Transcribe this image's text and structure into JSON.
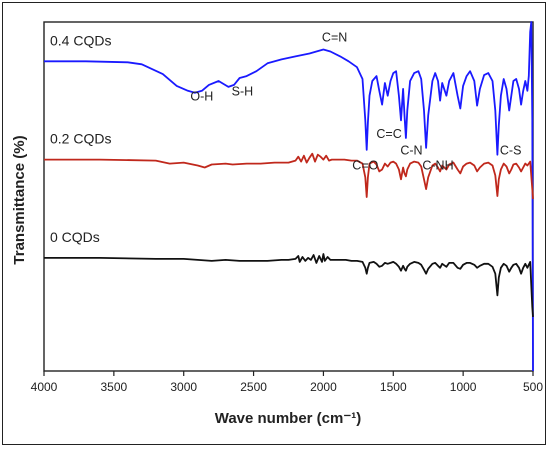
{
  "chart_data": {
    "type": "line",
    "xlabel": "Wave number (cm⁻¹)",
    "ylabel": "Transmittance (%)",
    "x_ticks": [
      "4000",
      "3500",
      "3000",
      "2500",
      "2000",
      "1500",
      "1000",
      "500"
    ],
    "xlim": [
      4000,
      500
    ],
    "x_reversed": true,
    "legend": "inline labels above each trace",
    "series": [
      {
        "name": "0.4 CQDs",
        "color": "#1a1aff",
        "offset": 2.0,
        "points": [
          [
            4000,
            0.9
          ],
          [
            3700,
            0.9
          ],
          [
            3400,
            0.89
          ],
          [
            3300,
            0.87
          ],
          [
            3150,
            0.77
          ],
          [
            3050,
            0.65
          ],
          [
            2970,
            0.6
          ],
          [
            2920,
            0.58
          ],
          [
            2870,
            0.6
          ],
          [
            2820,
            0.66
          ],
          [
            2750,
            0.7
          ],
          [
            2680,
            0.64
          ],
          [
            2640,
            0.66
          ],
          [
            2600,
            0.73
          ],
          [
            2550,
            0.75
          ],
          [
            2480,
            0.8
          ],
          [
            2400,
            0.88
          ],
          [
            2300,
            0.92
          ],
          [
            2200,
            0.95
          ],
          [
            2100,
            0.98
          ],
          [
            2050,
            1.0
          ],
          [
            2000,
            1.02
          ],
          [
            1950,
            1.0
          ],
          [
            1880,
            0.95
          ],
          [
            1820,
            0.9
          ],
          [
            1760,
            0.84
          ],
          [
            1720,
            0.72
          ],
          [
            1700,
            0.3
          ],
          [
            1690,
            0.0
          ],
          [
            1682,
            0.28
          ],
          [
            1670,
            0.55
          ],
          [
            1650,
            0.7
          ],
          [
            1620,
            0.75
          ],
          [
            1600,
            0.6
          ],
          [
            1580,
            0.46
          ],
          [
            1560,
            0.68
          ],
          [
            1540,
            0.55
          ],
          [
            1520,
            0.7
          ],
          [
            1500,
            0.78
          ],
          [
            1480,
            0.8
          ],
          [
            1460,
            0.55
          ],
          [
            1445,
            0.3
          ],
          [
            1430,
            0.62
          ],
          [
            1420,
            0.35
          ],
          [
            1410,
            0.12
          ],
          [
            1400,
            0.4
          ],
          [
            1380,
            0.7
          ],
          [
            1350,
            0.78
          ],
          [
            1320,
            0.8
          ],
          [
            1300,
            0.72
          ],
          [
            1280,
            0.4
          ],
          [
            1265,
            0.02
          ],
          [
            1250,
            0.35
          ],
          [
            1220,
            0.7
          ],
          [
            1200,
            0.78
          ],
          [
            1180,
            0.7
          ],
          [
            1165,
            0.5
          ],
          [
            1150,
            0.68
          ],
          [
            1120,
            0.55
          ],
          [
            1100,
            0.7
          ],
          [
            1070,
            0.78
          ],
          [
            1040,
            0.55
          ],
          [
            1020,
            0.42
          ],
          [
            1000,
            0.65
          ],
          [
            975,
            0.75
          ],
          [
            950,
            0.8
          ],
          [
            920,
            0.7
          ],
          [
            900,
            0.45
          ],
          [
            880,
            0.62
          ],
          [
            850,
            0.76
          ],
          [
            820,
            0.78
          ],
          [
            790,
            0.7
          ],
          [
            770,
            0.4
          ],
          [
            755,
            -0.05
          ],
          [
            745,
            0.25
          ],
          [
            730,
            0.55
          ],
          [
            710,
            0.72
          ],
          [
            690,
            0.62
          ],
          [
            670,
            0.4
          ],
          [
            655,
            0.55
          ],
          [
            640,
            0.7
          ],
          [
            620,
            0.72
          ],
          [
            600,
            0.62
          ],
          [
            585,
            0.46
          ],
          [
            570,
            0.6
          ],
          [
            555,
            0.7
          ],
          [
            540,
            0.6
          ],
          [
            530,
            0.75
          ],
          [
            520,
            1.2
          ],
          [
            512,
            1.4
          ],
          [
            505,
            0.3
          ],
          [
            500,
            -4.0
          ]
        ]
      },
      {
        "name": "0.2 CQDs",
        "color": "#c0281c",
        "offset": 1.0,
        "points": [
          [
            4000,
            0.9
          ],
          [
            3600,
            0.9
          ],
          [
            3200,
            0.89
          ],
          [
            3100,
            0.86
          ],
          [
            3000,
            0.87
          ],
          [
            2900,
            0.84
          ],
          [
            2850,
            0.82
          ],
          [
            2800,
            0.85
          ],
          [
            2700,
            0.86
          ],
          [
            2650,
            0.85
          ],
          [
            2550,
            0.86
          ],
          [
            2450,
            0.86
          ],
          [
            2350,
            0.87
          ],
          [
            2300,
            0.87
          ],
          [
            2250,
            0.87
          ],
          [
            2200,
            0.89
          ],
          [
            2180,
            0.93
          ],
          [
            2160,
            0.88
          ],
          [
            2140,
            0.94
          ],
          [
            2120,
            0.87
          ],
          [
            2100,
            0.92
          ],
          [
            2080,
            0.96
          ],
          [
            2060,
            0.88
          ],
          [
            2040,
            0.95
          ],
          [
            2020,
            0.93
          ],
          [
            2000,
            0.9
          ],
          [
            1980,
            0.94
          ],
          [
            1960,
            0.89
          ],
          [
            1940,
            0.9
          ],
          [
            1900,
            0.9
          ],
          [
            1850,
            0.9
          ],
          [
            1800,
            0.89
          ],
          [
            1760,
            0.89
          ],
          [
            1720,
            0.86
          ],
          [
            1700,
            0.72
          ],
          [
            1690,
            0.52
          ],
          [
            1682,
            0.72
          ],
          [
            1670,
            0.86
          ],
          [
            1640,
            0.88
          ],
          [
            1620,
            0.85
          ],
          [
            1600,
            0.78
          ],
          [
            1580,
            0.8
          ],
          [
            1560,
            0.86
          ],
          [
            1540,
            0.83
          ],
          [
            1520,
            0.87
          ],
          [
            1500,
            0.88
          ],
          [
            1480,
            0.86
          ],
          [
            1460,
            0.8
          ],
          [
            1445,
            0.7
          ],
          [
            1430,
            0.82
          ],
          [
            1420,
            0.76
          ],
          [
            1410,
            0.73
          ],
          [
            1400,
            0.8
          ],
          [
            1380,
            0.86
          ],
          [
            1350,
            0.88
          ],
          [
            1320,
            0.87
          ],
          [
            1300,
            0.83
          ],
          [
            1280,
            0.7
          ],
          [
            1265,
            0.6
          ],
          [
            1250,
            0.72
          ],
          [
            1220,
            0.84
          ],
          [
            1200,
            0.86
          ],
          [
            1180,
            0.82
          ],
          [
            1165,
            0.78
          ],
          [
            1150,
            0.84
          ],
          [
            1120,
            0.8
          ],
          [
            1100,
            0.85
          ],
          [
            1070,
            0.87
          ],
          [
            1040,
            0.8
          ],
          [
            1020,
            0.76
          ],
          [
            1000,
            0.83
          ],
          [
            975,
            0.86
          ],
          [
            950,
            0.87
          ],
          [
            920,
            0.84
          ],
          [
            900,
            0.78
          ],
          [
            880,
            0.82
          ],
          [
            850,
            0.86
          ],
          [
            820,
            0.87
          ],
          [
            790,
            0.84
          ],
          [
            770,
            0.74
          ],
          [
            755,
            0.53
          ],
          [
            745,
            0.7
          ],
          [
            730,
            0.8
          ],
          [
            710,
            0.86
          ],
          [
            690,
            0.83
          ],
          [
            670,
            0.76
          ],
          [
            655,
            0.8
          ],
          [
            640,
            0.85
          ],
          [
            620,
            0.86
          ],
          [
            600,
            0.82
          ],
          [
            585,
            0.78
          ],
          [
            570,
            0.82
          ],
          [
            555,
            0.86
          ],
          [
            540,
            0.84
          ],
          [
            520,
            0.88
          ],
          [
            505,
            0.6
          ],
          [
            500,
            0.5
          ]
        ]
      },
      {
        "name": "0 CQDs",
        "color": "#111111",
        "offset": 0.0,
        "points": [
          [
            4000,
            0.9
          ],
          [
            3600,
            0.9
          ],
          [
            3200,
            0.89
          ],
          [
            3000,
            0.89
          ],
          [
            2900,
            0.88
          ],
          [
            2800,
            0.87
          ],
          [
            2700,
            0.88
          ],
          [
            2600,
            0.87
          ],
          [
            2500,
            0.87
          ],
          [
            2400,
            0.87
          ],
          [
            2300,
            0.88
          ],
          [
            2250,
            0.88
          ],
          [
            2200,
            0.89
          ],
          [
            2180,
            0.92
          ],
          [
            2170,
            0.86
          ],
          [
            2150,
            0.91
          ],
          [
            2130,
            0.87
          ],
          [
            2110,
            0.9
          ],
          [
            2090,
            0.88
          ],
          [
            2070,
            0.93
          ],
          [
            2050,
            0.85
          ],
          [
            2030,
            0.92
          ],
          [
            2010,
            0.86
          ],
          [
            2000,
            0.94
          ],
          [
            1990,
            0.87
          ],
          [
            1970,
            0.91
          ],
          [
            1950,
            0.88
          ],
          [
            1920,
            0.88
          ],
          [
            1880,
            0.88
          ],
          [
            1840,
            0.88
          ],
          [
            1800,
            0.87
          ],
          [
            1760,
            0.87
          ],
          [
            1720,
            0.86
          ],
          [
            1700,
            0.8
          ],
          [
            1690,
            0.74
          ],
          [
            1682,
            0.8
          ],
          [
            1670,
            0.85
          ],
          [
            1640,
            0.86
          ],
          [
            1620,
            0.84
          ],
          [
            1600,
            0.81
          ],
          [
            1580,
            0.82
          ],
          [
            1560,
            0.85
          ],
          [
            1540,
            0.84
          ],
          [
            1520,
            0.85
          ],
          [
            1500,
            0.86
          ],
          [
            1480,
            0.84
          ],
          [
            1460,
            0.81
          ],
          [
            1445,
            0.77
          ],
          [
            1430,
            0.82
          ],
          [
            1420,
            0.79
          ],
          [
            1410,
            0.77
          ],
          [
            1400,
            0.81
          ],
          [
            1380,
            0.84
          ],
          [
            1350,
            0.86
          ],
          [
            1320,
            0.85
          ],
          [
            1300,
            0.83
          ],
          [
            1280,
            0.78
          ],
          [
            1265,
            0.74
          ],
          [
            1250,
            0.79
          ],
          [
            1220,
            0.84
          ],
          [
            1200,
            0.85
          ],
          [
            1180,
            0.82
          ],
          [
            1165,
            0.8
          ],
          [
            1150,
            0.84
          ],
          [
            1120,
            0.81
          ],
          [
            1100,
            0.85
          ],
          [
            1070,
            0.85
          ],
          [
            1040,
            0.8
          ],
          [
            1020,
            0.79
          ],
          [
            1000,
            0.83
          ],
          [
            975,
            0.85
          ],
          [
            950,
            0.85
          ],
          [
            920,
            0.83
          ],
          [
            900,
            0.8
          ],
          [
            880,
            0.82
          ],
          [
            850,
            0.84
          ],
          [
            820,
            0.84
          ],
          [
            790,
            0.81
          ],
          [
            770,
            0.74
          ],
          [
            755,
            0.52
          ],
          [
            745,
            0.7
          ],
          [
            730,
            0.8
          ],
          [
            710,
            0.84
          ],
          [
            690,
            0.82
          ],
          [
            670,
            0.76
          ],
          [
            655,
            0.8
          ],
          [
            640,
            0.83
          ],
          [
            620,
            0.84
          ],
          [
            600,
            0.8
          ],
          [
            585,
            0.74
          ],
          [
            570,
            0.8
          ],
          [
            555,
            0.84
          ],
          [
            540,
            0.8
          ],
          [
            520,
            0.86
          ],
          [
            505,
            0.4
          ],
          [
            500,
            0.3
          ]
        ]
      }
    ],
    "annotations": [
      {
        "text": "O-H",
        "x": 2870,
        "y": 0.5,
        "series": "0.4 CQDs"
      },
      {
        "text": "S-H",
        "x": 2580,
        "y": 0.55,
        "series": "0.4 CQDs"
      },
      {
        "text": "C=N",
        "x": 1920,
        "y": 1.1,
        "series": "0.4 CQDs"
      },
      {
        "text": "C=C",
        "x": 1530,
        "y": 0.12,
        "series": "0.4 CQDs"
      },
      {
        "text": "C=O",
        "x": 1700,
        "y": -0.2,
        "series": "0.4 CQDs"
      },
      {
        "text": "C-N",
        "x": 1370,
        "y": -0.05,
        "series": "0.4 CQDs"
      },
      {
        "text": "C-NH",
        "x": 1180,
        "y": -0.2,
        "series": "0.4 CQDs"
      },
      {
        "text": "C-S",
        "x": 660,
        "y": -0.05,
        "series": "0.4 CQDs"
      }
    ],
    "grid": false
  }
}
